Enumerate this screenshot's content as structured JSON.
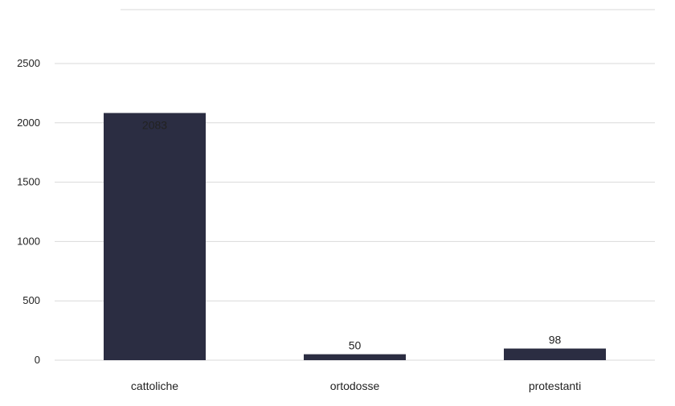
{
  "chart_data": {
    "type": "bar",
    "categories": [
      "cattoliche",
      "ortodosse",
      "protestanti"
    ],
    "values": [
      2083,
      50,
      98
    ],
    "data_labels": [
      "2083",
      "50",
      "98"
    ],
    "title": "",
    "xlabel": "",
    "ylabel": "",
    "ylim": [
      0,
      2500
    ],
    "yticks": [
      0,
      500,
      1000,
      1500,
      2000,
      2500
    ],
    "ytick_labels": [
      "0",
      "500",
      "1000",
      "1500",
      "2000",
      "2500"
    ],
    "grid": true,
    "legend": "none",
    "bar_color": "#2b2d42"
  }
}
